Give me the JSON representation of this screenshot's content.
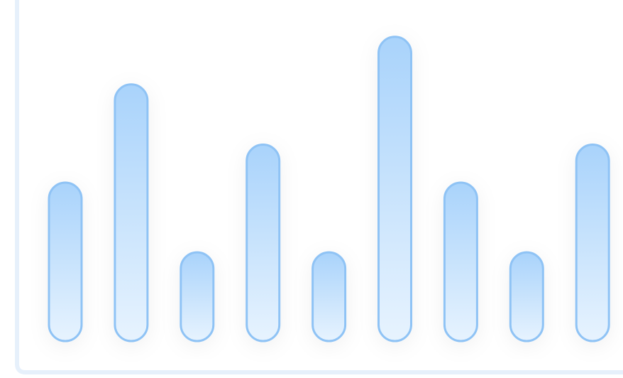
{
  "chart_data": {
    "type": "bar",
    "categories": [
      "",
      "",
      "",
      "",
      "",
      "",
      "",
      "",
      ""
    ],
    "values": [
      50,
      81,
      28,
      62,
      28,
      96,
      50,
      28,
      62
    ],
    "ylim": [
      0,
      100
    ],
    "grid": false,
    "legend": "none",
    "title": "",
    "xlabel": "",
    "ylabel": ""
  },
  "colors": {
    "bar_fill_top": "#a9d3fb",
    "bar_fill_bottom": "#e7f3fe",
    "bar_stroke": "#8fc3f5",
    "axis": "#e6f0fb",
    "background": "#ffffff"
  }
}
